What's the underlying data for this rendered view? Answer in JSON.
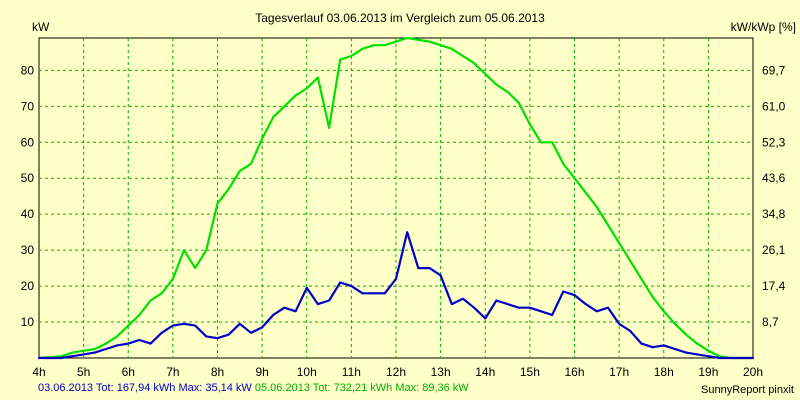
{
  "chart_data": {
    "type": "line",
    "title": "Tagesverlauf 03.06.2013 im Vergleich zum 05.06.2013",
    "ylabel_left": "kW",
    "ylabel_right": "kW/kWp [%]",
    "x_ticks": [
      "4h",
      "5h",
      "6h",
      "7h",
      "8h",
      "9h",
      "10h",
      "11h",
      "12h",
      "13h",
      "14h",
      "15h",
      "16h",
      "17h",
      "18h",
      "19h",
      "20h"
    ],
    "x_range": [
      4,
      20
    ],
    "y_ticks_left": [
      10,
      20,
      30,
      40,
      50,
      60,
      70,
      80
    ],
    "y_ticks_right": [
      "8,7",
      "17,4",
      "26,1",
      "34,8",
      "43,6",
      "52,3",
      "61,0",
      "69,7"
    ],
    "ylim": [
      0,
      89
    ],
    "grid": true,
    "series": [
      {
        "color": "#00e000",
        "points": [
          [
            4,
            0
          ],
          [
            4.5,
            0.5
          ],
          [
            4.75,
            1.5
          ],
          [
            5,
            2
          ],
          [
            5.25,
            2.5
          ],
          [
            5.5,
            4
          ],
          [
            5.75,
            6
          ],
          [
            6,
            9
          ],
          [
            6.25,
            12
          ],
          [
            6.5,
            16
          ],
          [
            6.75,
            18
          ],
          [
            7,
            22
          ],
          [
            7.25,
            30
          ],
          [
            7.5,
            25
          ],
          [
            7.75,
            30
          ],
          [
            8,
            43
          ],
          [
            8.25,
            47
          ],
          [
            8.5,
            52
          ],
          [
            8.75,
            54
          ],
          [
            9,
            61
          ],
          [
            9.25,
            67
          ],
          [
            9.5,
            70
          ],
          [
            9.75,
            73
          ],
          [
            10,
            75
          ],
          [
            10.25,
            78
          ],
          [
            10.5,
            64
          ],
          [
            10.75,
            83
          ],
          [
            11,
            84
          ],
          [
            11.25,
            86
          ],
          [
            11.5,
            87
          ],
          [
            11.75,
            87
          ],
          [
            12,
            88
          ],
          [
            12.25,
            89
          ],
          [
            12.5,
            88.5
          ],
          [
            12.75,
            88
          ],
          [
            13,
            87
          ],
          [
            13.25,
            86
          ],
          [
            13.5,
            84
          ],
          [
            13.75,
            82
          ],
          [
            14,
            79
          ],
          [
            14.25,
            76
          ],
          [
            14.5,
            74
          ],
          [
            14.75,
            71
          ],
          [
            15,
            65
          ],
          [
            15.25,
            60
          ],
          [
            15.5,
            60
          ],
          [
            15.75,
            54
          ],
          [
            16,
            50
          ],
          [
            16.25,
            46
          ],
          [
            16.5,
            42
          ],
          [
            16.75,
            37
          ],
          [
            17,
            32
          ],
          [
            17.25,
            27
          ],
          [
            17.5,
            22
          ],
          [
            17.75,
            17
          ],
          [
            18,
            13
          ],
          [
            18.25,
            9.5
          ],
          [
            18.5,
            6.5
          ],
          [
            18.75,
            4
          ],
          [
            19,
            2
          ],
          [
            19.25,
            0.5
          ],
          [
            19.5,
            0
          ],
          [
            20,
            0
          ]
        ]
      },
      {
        "color": "#0000c8",
        "points": [
          [
            4,
            0
          ],
          [
            4.5,
            0
          ],
          [
            4.75,
            0.5
          ],
          [
            5,
            1
          ],
          [
            5.25,
            1.5
          ],
          [
            5.5,
            2.5
          ],
          [
            5.75,
            3.5
          ],
          [
            6,
            4
          ],
          [
            6.25,
            5
          ],
          [
            6.5,
            4
          ],
          [
            6.75,
            7
          ],
          [
            7,
            9
          ],
          [
            7.25,
            9.5
          ],
          [
            7.5,
            9
          ],
          [
            7.75,
            6
          ],
          [
            8,
            5.5
          ],
          [
            8.25,
            6.5
          ],
          [
            8.5,
            9.5
          ],
          [
            8.75,
            7
          ],
          [
            9,
            8.5
          ],
          [
            9.25,
            12
          ],
          [
            9.5,
            14
          ],
          [
            9.75,
            13
          ],
          [
            10,
            19.5
          ],
          [
            10.25,
            15
          ],
          [
            10.5,
            16
          ],
          [
            10.75,
            21
          ],
          [
            11,
            20
          ],
          [
            11.25,
            18
          ],
          [
            11.5,
            18
          ],
          [
            11.75,
            18
          ],
          [
            12,
            22
          ],
          [
            12.25,
            35
          ],
          [
            12.5,
            25
          ],
          [
            12.75,
            25
          ],
          [
            13,
            23
          ],
          [
            13.25,
            15
          ],
          [
            13.5,
            16.5
          ],
          [
            13.75,
            14
          ],
          [
            14,
            11
          ],
          [
            14.25,
            16
          ],
          [
            14.5,
            15
          ],
          [
            14.75,
            14
          ],
          [
            15,
            14
          ],
          [
            15.25,
            13
          ],
          [
            15.5,
            12
          ],
          [
            15.75,
            18.5
          ],
          [
            16,
            17.5
          ],
          [
            16.25,
            15
          ],
          [
            16.5,
            13
          ],
          [
            16.75,
            14
          ],
          [
            17,
            9.5
          ],
          [
            17.25,
            7.5
          ],
          [
            17.5,
            4
          ],
          [
            17.75,
            3
          ],
          [
            18,
            3.5
          ],
          [
            18.25,
            2.5
          ],
          [
            18.5,
            1.5
          ],
          [
            18.75,
            1
          ],
          [
            19,
            0.5
          ],
          [
            19.25,
            0
          ],
          [
            20,
            0
          ]
        ]
      }
    ]
  },
  "footer": {
    "series1": "03.06.2013 Tot: 167,94 kWh Max: 35,14 kW",
    "series2": "05.06.2013 Tot: 732,21 kWh Max: 89,36 kW",
    "credit": "SunnyReport pinxit"
  }
}
